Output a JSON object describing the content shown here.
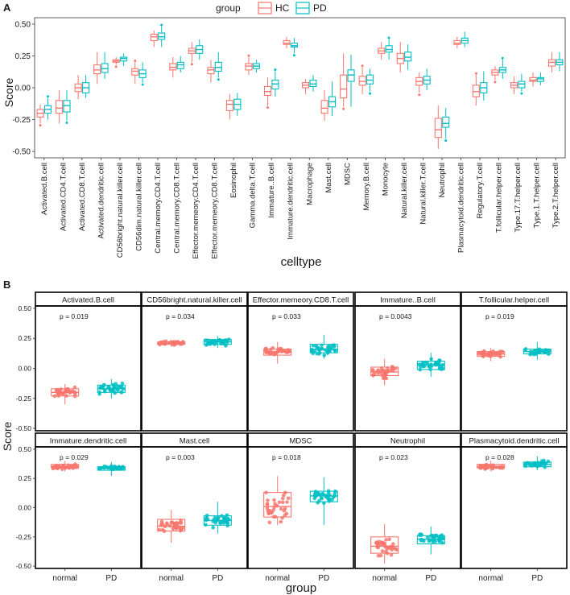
{
  "panel_a": {
    "label": "A",
    "ylabel": "Score",
    "xlabel": "celltype",
    "legend": {
      "title": "group",
      "items": [
        {
          "name": "HC",
          "color": "#F8766D"
        },
        {
          "name": "PD",
          "color": "#00BFC4"
        }
      ]
    }
  },
  "panel_b": {
    "label": "B",
    "ylabel": "Score",
    "xlabel": "group",
    "groups": [
      "normal",
      "PD"
    ],
    "colors": {
      "normal": "#F8766D",
      "PD": "#00BFC4"
    }
  },
  "chart_data": [
    {
      "type": "box",
      "panel": "A",
      "ylabel": "Score",
      "xlabel": "celltype",
      "ylim": [
        -0.55,
        0.55
      ],
      "yticks": [
        "0.50",
        "0.25",
        "0.00",
        "-0.25",
        "-0.50"
      ],
      "ytick_values": [
        0.5,
        0.25,
        0.0,
        -0.25,
        -0.5
      ],
      "series_names": [
        "HC",
        "PD"
      ],
      "categories": [
        "Activated.B.cell",
        "Activated.CD4.T.cell",
        "Activated.CD8.T.cell",
        "Activated.dendritic.cell",
        "CD56bright.natural.killer.cell",
        "CD56dim.natural.killer.cell",
        "Central.memory.CD4.T.cell",
        "Central.memory.CD8.T.cell",
        "Effector.memeory.CD4.T.cell",
        "Effector.memeory.CD8.T.cell",
        "Eosinophil",
        "Gamma.delta.T.cell",
        "Immature..B.cell",
        "Immature.dendritic.cell",
        "Macrophage",
        "Mast.cell",
        "MDSC",
        "Memory.B.cell",
        "Monocyte",
        "Natural.killer.cell",
        "Natural.killer.T.cell",
        "Neutrophil",
        "Plasmacytoid.dendritic.cell",
        "Regulatory.T.cell",
        "T.follicular.helper.cell",
        "Type.17.T.helper.cell",
        "Type.1.T.helper.cell",
        "Type.2.T.helper.cell"
      ],
      "boxes": [
        {
          "HC": [
            -0.28,
            -0.23,
            -0.2,
            -0.17,
            -0.13
          ],
          "PD": [
            -0.25,
            -0.2,
            -0.17,
            -0.14,
            -0.08
          ]
        },
        {
          "HC": [
            -0.28,
            -0.2,
            -0.16,
            -0.1,
            -0.02
          ],
          "PD": [
            -0.26,
            -0.19,
            -0.14,
            -0.1,
            -0.02
          ]
        },
        {
          "HC": [
            -0.09,
            -0.03,
            0.0,
            0.03,
            0.1
          ],
          "PD": [
            -0.08,
            -0.04,
            0.0,
            0.04,
            0.1
          ]
        },
        {
          "HC": [
            0.03,
            0.11,
            0.14,
            0.18,
            0.28
          ],
          "PD": [
            0.07,
            0.12,
            0.15,
            0.19,
            0.28
          ]
        },
        {
          "HC": [
            0.18,
            0.2,
            0.21,
            0.22,
            0.24
          ],
          "PD": [
            0.17,
            0.21,
            0.23,
            0.24,
            0.27
          ]
        },
        {
          "HC": [
            0.03,
            0.1,
            0.13,
            0.15,
            0.2
          ],
          "PD": [
            0.04,
            0.08,
            0.11,
            0.14,
            0.2
          ]
        },
        {
          "HC": [
            0.32,
            0.37,
            0.4,
            0.42,
            0.45
          ],
          "PD": [
            0.32,
            0.38,
            0.4,
            0.43,
            0.48
          ]
        },
        {
          "HC": [
            0.08,
            0.14,
            0.16,
            0.19,
            0.24
          ],
          "PD": [
            0.12,
            0.15,
            0.18,
            0.2,
            0.25
          ]
        },
        {
          "HC": [
            0.2,
            0.27,
            0.29,
            0.31,
            0.36
          ],
          "PD": [
            0.22,
            0.27,
            0.3,
            0.33,
            0.38
          ]
        },
        {
          "HC": [
            0.04,
            0.11,
            0.14,
            0.16,
            0.22
          ],
          "PD": [
            0.08,
            0.13,
            0.16,
            0.2,
            0.28
          ]
        },
        {
          "HC": [
            -0.25,
            -0.18,
            -0.13,
            -0.1,
            -0.05
          ],
          "PD": [
            -0.22,
            -0.17,
            -0.13,
            -0.09,
            -0.04
          ]
        },
        {
          "HC": [
            0.1,
            0.14,
            0.17,
            0.19,
            0.24
          ],
          "PD": [
            0.12,
            0.15,
            0.17,
            0.19,
            0.22
          ]
        },
        {
          "HC": [
            -0.14,
            -0.06,
            -0.03,
            0.01,
            0.08
          ],
          "PD": [
            -0.07,
            -0.01,
            0.03,
            0.06,
            0.13
          ]
        },
        {
          "HC": [
            0.31,
            0.34,
            0.35,
            0.37,
            0.4
          ],
          "PD": [
            0.27,
            0.32,
            0.33,
            0.35,
            0.39
          ]
        },
        {
          "HC": [
            -0.05,
            0.0,
            0.02,
            0.04,
            0.07
          ],
          "PD": [
            -0.03,
            0.01,
            0.03,
            0.06,
            0.1
          ]
        },
        {
          "HC": [
            -0.26,
            -0.2,
            -0.16,
            -0.1,
            -0.02
          ],
          "PD": [
            -0.22,
            -0.15,
            -0.11,
            -0.07,
            0.05
          ]
        },
        {
          "HC": [
            -0.15,
            -0.08,
            -0.01,
            0.1,
            0.27
          ],
          "PD": [
            -0.15,
            0.05,
            0.1,
            0.14,
            0.26
          ]
        },
        {
          "HC": [
            -0.05,
            0.02,
            0.05,
            0.09,
            0.16
          ],
          "PD": [
            -0.03,
            0.03,
            0.06,
            0.1,
            0.15
          ]
        },
        {
          "HC": [
            0.22,
            0.27,
            0.29,
            0.31,
            0.36
          ],
          "PD": [
            0.22,
            0.28,
            0.3,
            0.33,
            0.38
          ]
        },
        {
          "HC": [
            0.12,
            0.19,
            0.23,
            0.27,
            0.36
          ],
          "PD": [
            0.14,
            0.21,
            0.24,
            0.28,
            0.34
          ]
        },
        {
          "HC": [
            -0.04,
            0.02,
            0.05,
            0.08,
            0.12
          ],
          "PD": [
            -0.02,
            0.03,
            0.06,
            0.09,
            0.15
          ]
        },
        {
          "HC": [
            -0.48,
            -0.39,
            -0.33,
            -0.24,
            -0.14
          ],
          "PD": [
            -0.4,
            -0.31,
            -0.28,
            -0.23,
            -0.16
          ]
        },
        {
          "HC": [
            0.31,
            0.34,
            0.35,
            0.37,
            0.4
          ],
          "PD": [
            0.32,
            0.35,
            0.37,
            0.39,
            0.44
          ]
        },
        {
          "HC": [
            -0.14,
            -0.07,
            -0.03,
            0.02,
            0.1
          ],
          "PD": [
            -0.1,
            -0.04,
            0.0,
            0.04,
            0.13
          ]
        },
        {
          "HC": [
            0.06,
            0.1,
            0.12,
            0.14,
            0.17
          ],
          "PD": [
            0.07,
            0.12,
            0.14,
            0.16,
            0.22
          ]
        },
        {
          "HC": [
            -0.05,
            0.0,
            0.02,
            0.04,
            0.09
          ],
          "PD": [
            -0.03,
            0.0,
            0.03,
            0.05,
            0.11
          ]
        },
        {
          "HC": [
            0.01,
            0.05,
            0.06,
            0.08,
            0.12
          ],
          "PD": [
            0.02,
            0.05,
            0.07,
            0.08,
            0.12
          ]
        },
        {
          "HC": [
            0.12,
            0.17,
            0.2,
            0.22,
            0.28
          ],
          "PD": [
            0.13,
            0.18,
            0.2,
            0.22,
            0.28
          ]
        }
      ]
    },
    {
      "type": "box",
      "panel": "B",
      "ylabel": "Score",
      "xlabel": "group",
      "ylim": [
        -0.52,
        0.52
      ],
      "yticks": [
        "0.50",
        "0.25",
        "0.00",
        "-0.25",
        "-0.50"
      ],
      "ytick_values": [
        0.5,
        0.25,
        0.0,
        -0.25,
        -0.5
      ],
      "groups": [
        "normal",
        "PD"
      ],
      "facets": [
        {
          "title": "Activated.B.cell",
          "p": "p = 0.019",
          "normal": [
            -0.3,
            -0.23,
            -0.2,
            -0.17,
            -0.13
          ],
          "PD": [
            -0.25,
            -0.2,
            -0.17,
            -0.14,
            -0.09
          ]
        },
        {
          "title": "CD56bright.natural.killer.cell",
          "p": "p = 0.034",
          "normal": [
            0.18,
            0.2,
            0.21,
            0.22,
            0.24
          ],
          "PD": [
            0.17,
            0.2,
            0.22,
            0.24,
            0.27
          ]
        },
        {
          "title": "Effector.memeory.CD8.T.cell",
          "p": "p = 0.033",
          "normal": [
            0.04,
            0.11,
            0.14,
            0.16,
            0.22
          ],
          "PD": [
            0.08,
            0.13,
            0.16,
            0.2,
            0.28
          ]
        },
        {
          "title": "Immature..B.cell",
          "p": "p = 0.0043",
          "normal": [
            -0.14,
            -0.06,
            -0.03,
            0.01,
            0.08
          ],
          "PD": [
            -0.07,
            -0.01,
            0.03,
            0.06,
            0.13
          ]
        },
        {
          "title": "T.follicular.helper.cell",
          "p": "p = 0.019",
          "normal": [
            0.06,
            0.1,
            0.12,
            0.14,
            0.17
          ],
          "PD": [
            0.07,
            0.12,
            0.14,
            0.16,
            0.22
          ]
        },
        {
          "title": "Immature.dendritic.cell",
          "p": "p = 0.029",
          "normal": [
            0.31,
            0.34,
            0.35,
            0.37,
            0.4
          ],
          "PD": [
            0.27,
            0.32,
            0.34,
            0.35,
            0.39
          ]
        },
        {
          "title": "Mast.cell",
          "p": "p = 0.003",
          "normal": [
            -0.3,
            -0.2,
            -0.16,
            -0.1,
            -0.02
          ],
          "PD": [
            -0.22,
            -0.15,
            -0.11,
            -0.07,
            0.05
          ]
        },
        {
          "title": "MDSC",
          "p": "p = 0.018",
          "normal": [
            -0.15,
            -0.08,
            0.01,
            0.13,
            0.27
          ],
          "PD": [
            -0.15,
            0.05,
            0.1,
            0.14,
            0.26
          ]
        },
        {
          "title": "Neutrophil",
          "p": "p = 0.023",
          "normal": [
            -0.48,
            -0.39,
            -0.33,
            -0.25,
            -0.14
          ],
          "PD": [
            -0.4,
            -0.31,
            -0.27,
            -0.24,
            -0.16
          ]
        },
        {
          "title": "Plasmacytoid.dendritic.cell",
          "p": "p = 0.028",
          "normal": [
            0.31,
            0.34,
            0.35,
            0.37,
            0.4
          ],
          "PD": [
            0.32,
            0.35,
            0.37,
            0.39,
            0.44
          ]
        }
      ]
    }
  ]
}
